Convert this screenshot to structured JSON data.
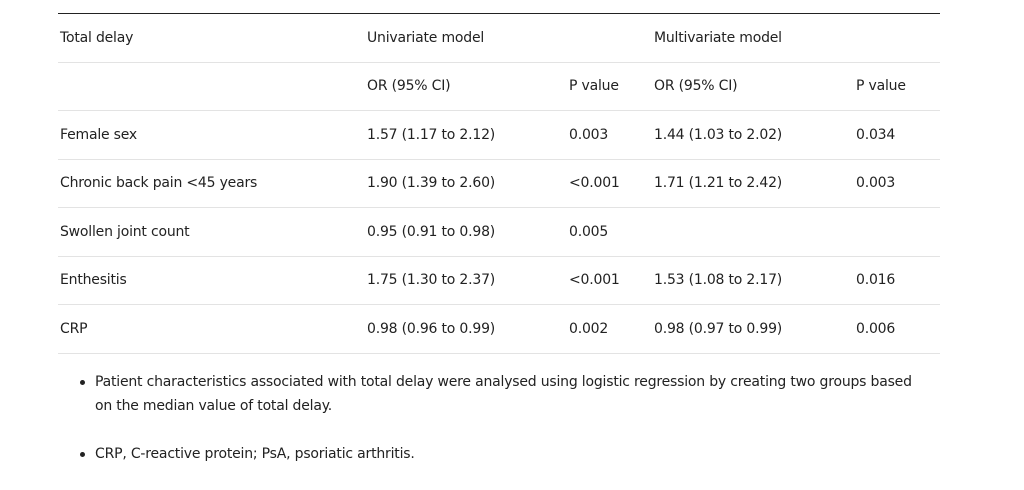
{
  "table": {
    "header1": [
      "Total delay",
      "Univariate model",
      "",
      "Multivariate model",
      ""
    ],
    "header2": [
      "",
      "OR (95% CI)",
      "P value",
      "OR (95% CI)",
      "P value"
    ],
    "rows": [
      [
        "Female sex",
        "1.57 (1.17 to 2.12)",
        "0.003",
        "1.44 (1.03 to 2.02)",
        "0.034"
      ],
      [
        "Chronic back pain <45 years",
        "1.90 (1.39 to 2.60)",
        "<0.001",
        "1.71 (1.21 to 2.42)",
        "0.003"
      ],
      [
        "Swollen joint count",
        "0.95 (0.91 to 0.98)",
        "0.005",
        "",
        ""
      ],
      [
        "Enthesitis",
        "1.75 (1.30 to 2.37)",
        "<0.001",
        "1.53 (1.08 to 2.17)",
        "0.016"
      ],
      [
        "CRP",
        "0.98 (0.96 to 0.99)",
        "0.002",
        "0.98 (0.97 to 0.99)",
        "0.006"
      ]
    ]
  },
  "notes": [
    "Patient characteristics associated with total delay were analysed using logistic regression by creating two groups based on the median value of total delay.",
    "CRP, C-reactive protein; PsA, psoriatic arthritis."
  ]
}
